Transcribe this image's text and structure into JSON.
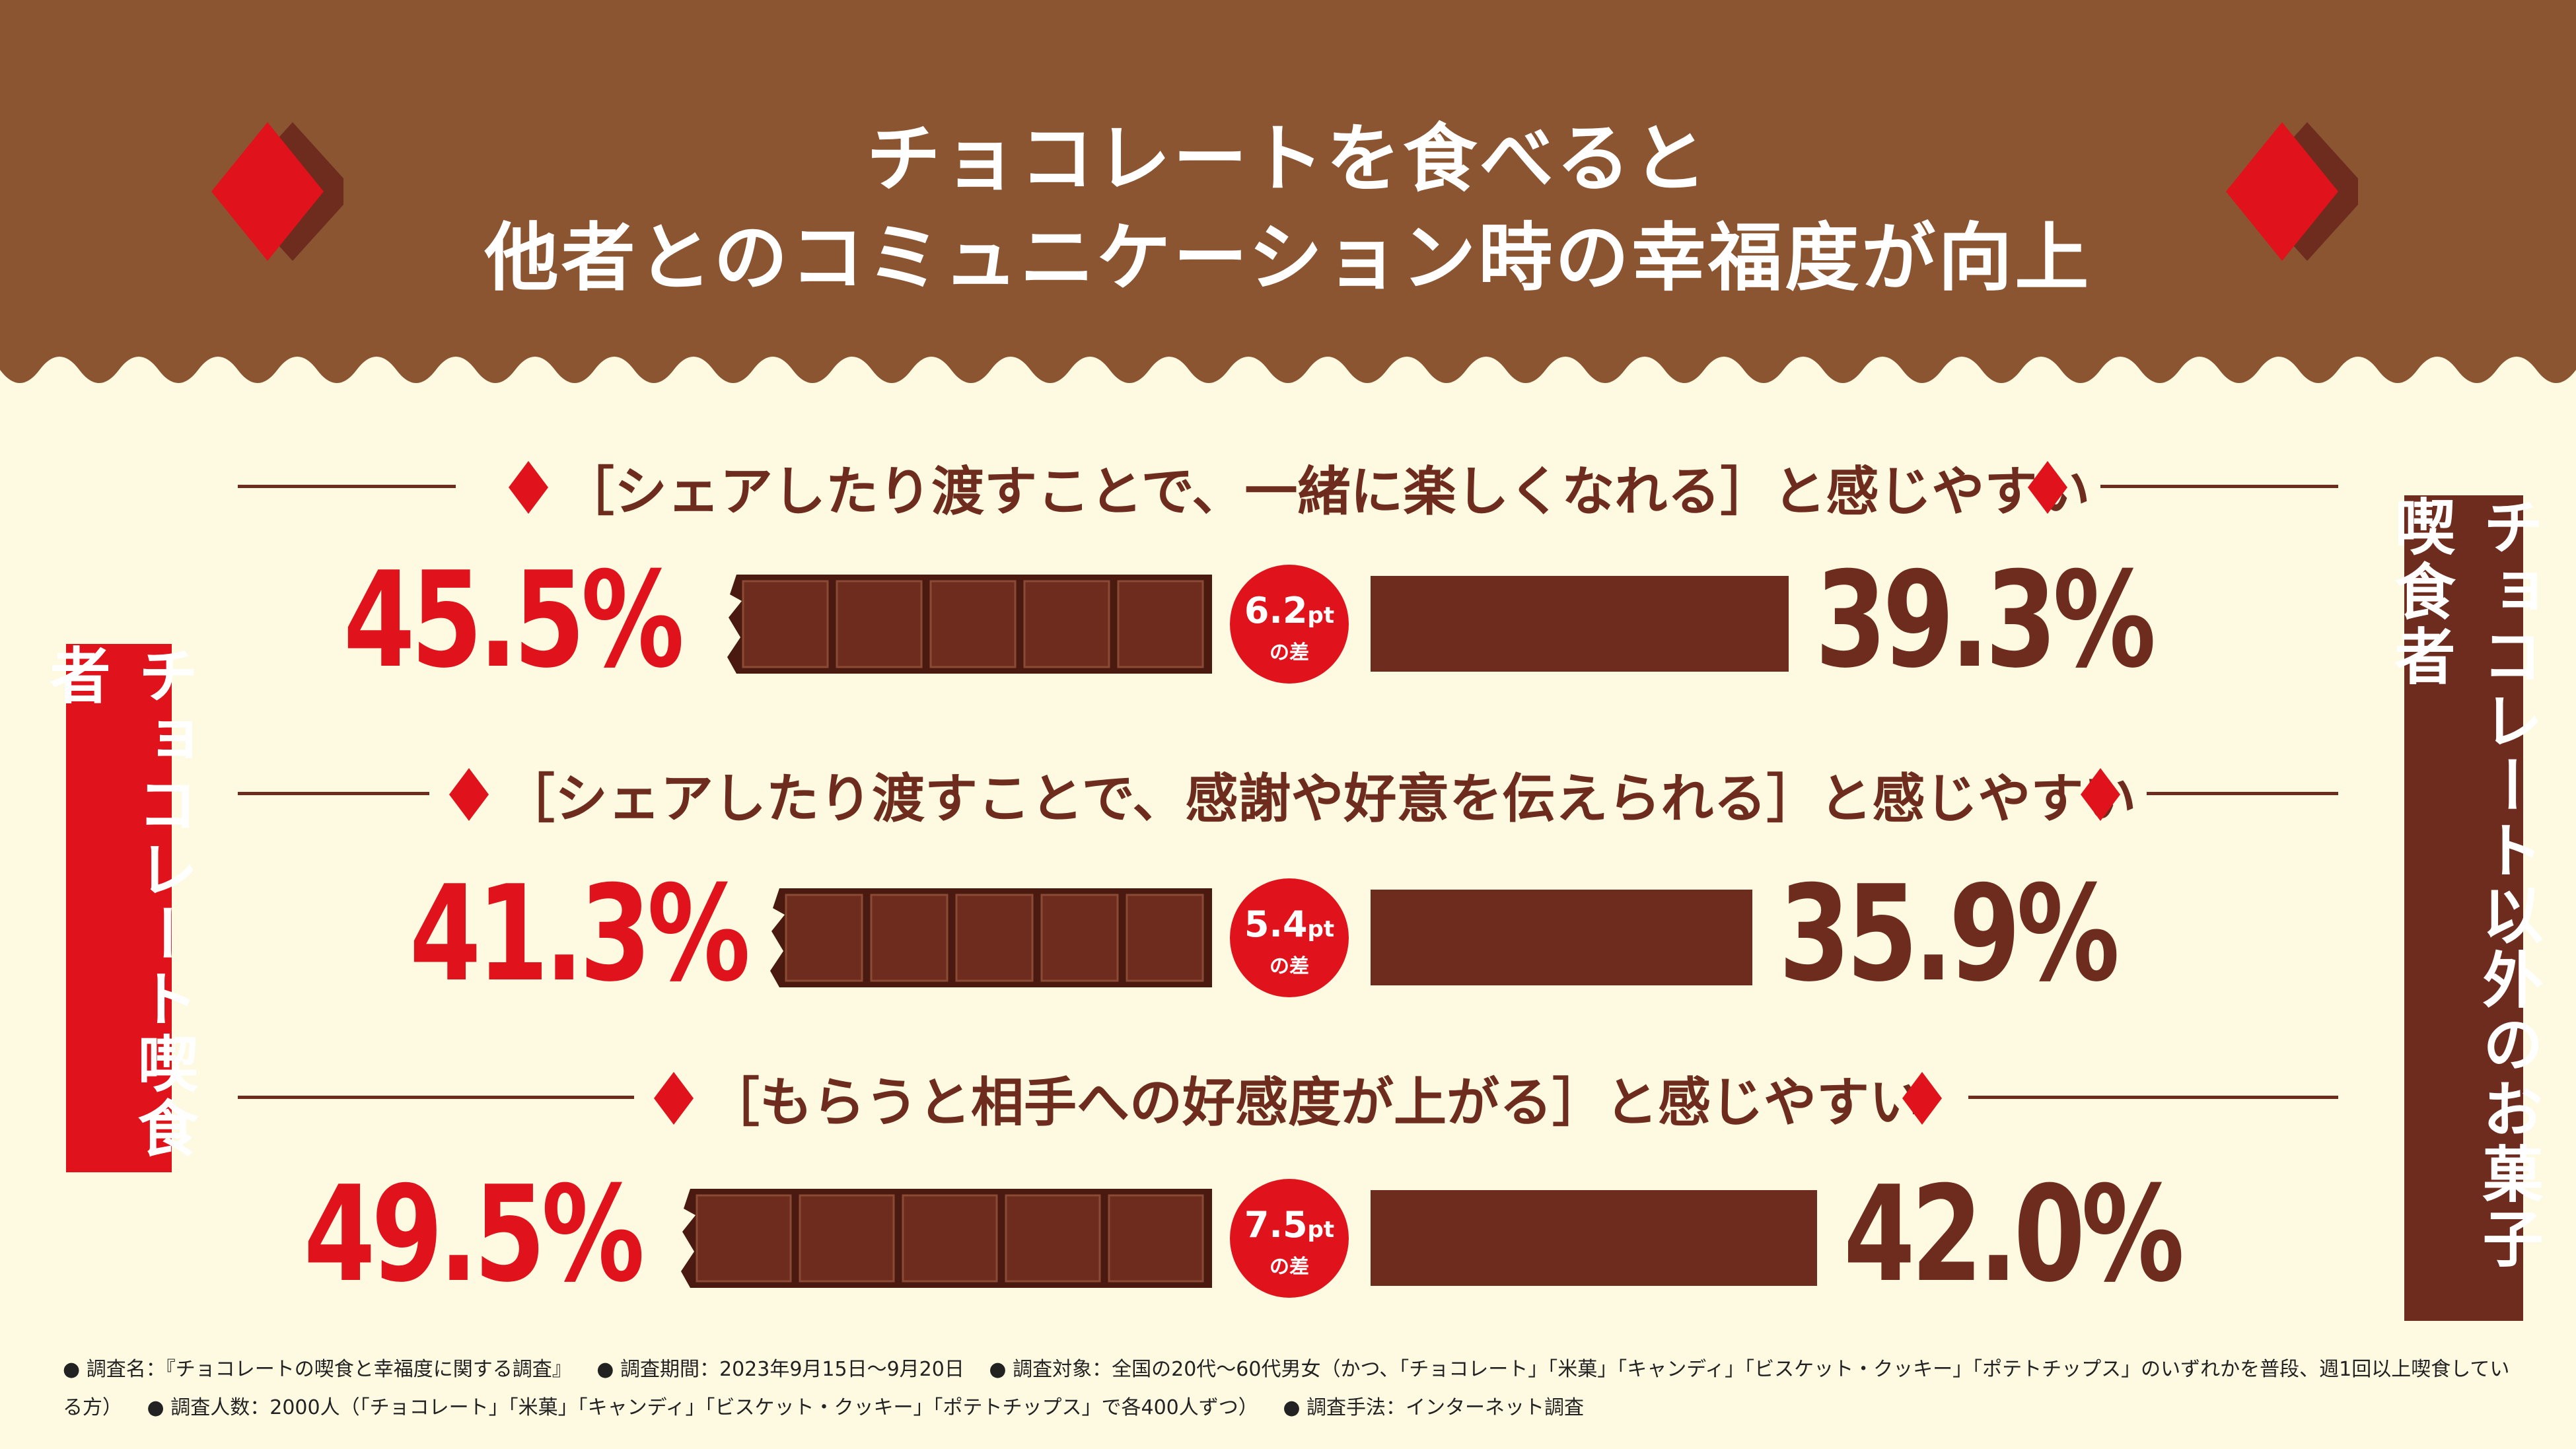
{
  "title": {
    "line1": "チョコレートを食べると",
    "line2": "他者とのコミュニケーション時の幸福度が向上"
  },
  "side_labels": {
    "left": "チョコレート喫食者",
    "right": "チョコレート以外のお菓子喫食者"
  },
  "colors": {
    "background": "#fef9e1",
    "header": "#8b5532",
    "red": "#e0121b",
    "brown": "#6e2c1e"
  },
  "chart_data": {
    "type": "bar",
    "series": [
      {
        "name": "チョコレート喫食者",
        "values": [
          45.5,
          41.3,
          49.5
        ]
      },
      {
        "name": "チョコレート以外のお菓子喫食者",
        "values": [
          39.3,
          35.9,
          42.0
        ]
      }
    ],
    "rows": [
      {
        "question": "［シェアしたり渡すことで、一緒に楽しくなれる］と感じやすい",
        "choco_label": "45.5%",
        "other_label": "39.3%",
        "diff_value": "6.2",
        "diff_unit": "pt",
        "diff_suffix": "の差"
      },
      {
        "question": "［シェアしたり渡すことで、感謝や好意を伝えられる］と感じやすい",
        "choco_label": "41.3%",
        "other_label": "35.9%",
        "diff_value": "5.4",
        "diff_unit": "pt",
        "diff_suffix": "の差"
      },
      {
        "question": "［もらうと相手への好感度が上がる］と感じやすい",
        "choco_label": "49.5%",
        "other_label": "42.0%",
        "diff_value": "7.5",
        "diff_unit": "pt",
        "diff_suffix": "の差"
      }
    ]
  },
  "footer": {
    "items": [
      "● 調査名：『チョコレートの喫食と幸福度に関する調査』",
      "● 調査期間：2023年9月15日〜9月20日",
      "● 調査対象：全国の20代〜60代男女（かつ、「チョコレート」「米菓」「キャンディ」「ビスケット・クッキー」「ポテトチップス」のいずれかを普段、週1回以上喫食している方）",
      "● 調査人数：2000人（「チョコレート」「米菓」「キャンディ」「ビスケット・クッキー」「ポテトチップス」で各400人ずつ）",
      "● 調査手法：インターネット調査"
    ]
  }
}
